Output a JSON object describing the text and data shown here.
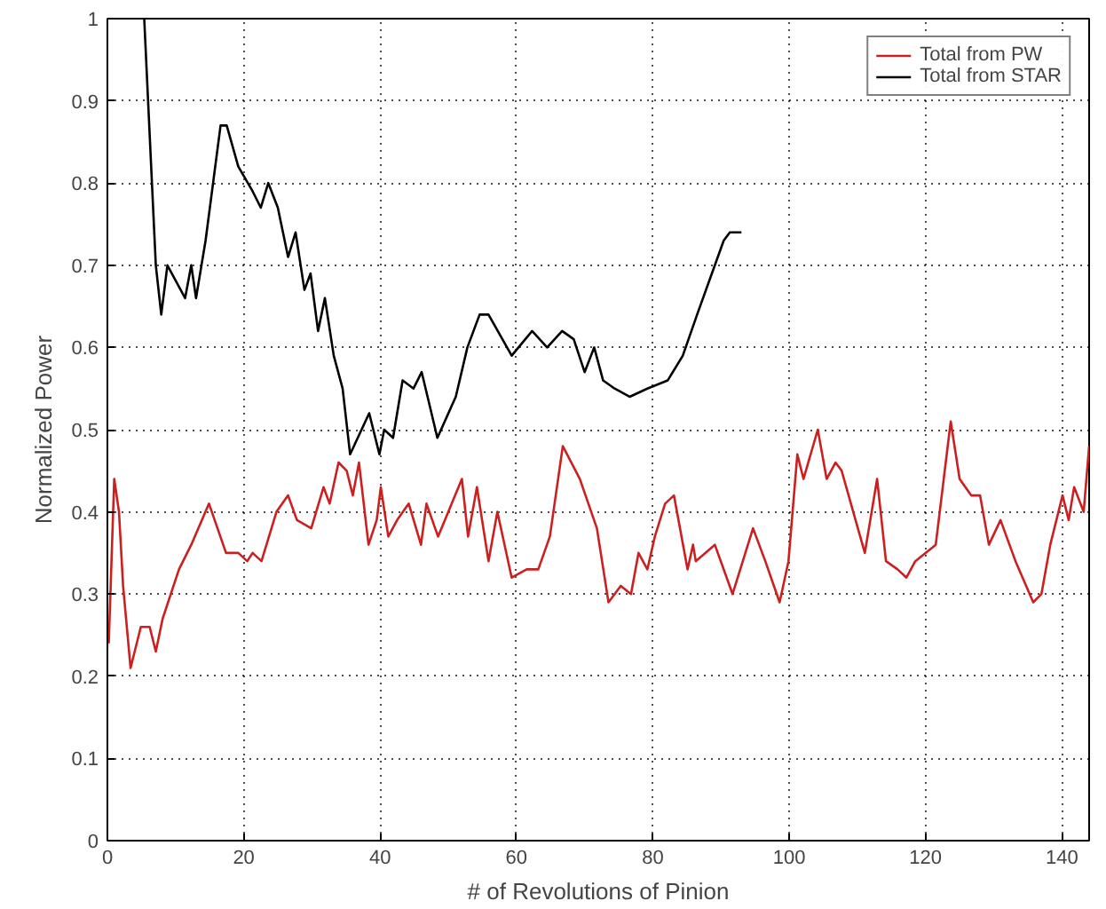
{
  "chart_data": {
    "type": "line",
    "xlabel": "# of Revolutions of Pinion",
    "ylabel": "Normalized Power",
    "xlim": [
      0,
      144
    ],
    "ylim": [
      0,
      1
    ],
    "xticks": [
      0,
      20,
      40,
      60,
      80,
      100,
      120,
      140
    ],
    "yticks": [
      0,
      0.1,
      0.2,
      0.3,
      0.4,
      0.5,
      0.6,
      0.7,
      0.8,
      0.9,
      1
    ],
    "grid": true,
    "legend": "top right",
    "line_style": "solid",
    "marker": "none",
    "series": [
      {
        "name": "Total from PW",
        "color": "#cc1f1f",
        "x": [
          0.2,
          1.0,
          1.7,
          2.3,
          3.4,
          4.9,
          6.2,
          7.1,
          8.1,
          10.5,
          12.3,
          14.9,
          17.4,
          19.2,
          20.5,
          21.3,
          22.6,
          24.8,
          26.5,
          27.8,
          29.9,
          31.7,
          32.6,
          33.9,
          35.1,
          36.0,
          36.9,
          38.3,
          39.5,
          40.1,
          41.2,
          42.5,
          44.2,
          46.0,
          46.8,
          48.5,
          52.0,
          52.9,
          54.2,
          55.9,
          57.2,
          59.3,
          61.5,
          63.2,
          64.9,
          66.8,
          69.3,
          71.8,
          73.5,
          75.3,
          76.8,
          77.9,
          79.2,
          80.3,
          81.8,
          83.1,
          85.1,
          85.9,
          86.3,
          89.1,
          91.7,
          94.7,
          96.5,
          98.6,
          99.9,
          101.2,
          102.1,
          104.2,
          105.5,
          106.8,
          107.7,
          109.4,
          111.1,
          112.9,
          114.2,
          115.9,
          117.2,
          118.5,
          121.5,
          123.7,
          125.0,
          126.7,
          128.0,
          129.3,
          131.0,
          133.2,
          135.8,
          137.0,
          138.3,
          140.1,
          141.0,
          141.8,
          143.2,
          144
        ],
        "values": [
          0.24,
          0.44,
          0.4,
          0.31,
          0.21,
          0.26,
          0.26,
          0.23,
          0.27,
          0.33,
          0.36,
          0.41,
          0.35,
          0.35,
          0.34,
          0.35,
          0.34,
          0.4,
          0.42,
          0.39,
          0.38,
          0.43,
          0.41,
          0.46,
          0.45,
          0.42,
          0.46,
          0.36,
          0.39,
          0.43,
          0.37,
          0.39,
          0.41,
          0.36,
          0.41,
          0.37,
          0.44,
          0.37,
          0.43,
          0.34,
          0.4,
          0.32,
          0.33,
          0.33,
          0.37,
          0.48,
          0.44,
          0.38,
          0.29,
          0.31,
          0.3,
          0.35,
          0.33,
          0.37,
          0.41,
          0.42,
          0.33,
          0.36,
          0.34,
          0.36,
          0.3,
          0.38,
          0.34,
          0.29,
          0.34,
          0.47,
          0.44,
          0.5,
          0.44,
          0.46,
          0.45,
          0.4,
          0.35,
          0.44,
          0.34,
          0.33,
          0.32,
          0.34,
          0.36,
          0.51,
          0.44,
          0.42,
          0.42,
          0.36,
          0.39,
          0.34,
          0.29,
          0.3,
          0.36,
          0.42,
          0.39,
          0.43,
          0.4,
          0.48
        ]
      },
      {
        "name": "Total from STAR",
        "color": "#000000",
        "x": [
          5.4,
          7.1,
          7.9,
          8.8,
          11.4,
          12.3,
          13.0,
          14.4,
          16.6,
          17.5,
          19.2,
          21.3,
          22.5,
          23.6,
          25.0,
          26.5,
          27.6,
          28.9,
          29.8,
          30.9,
          31.9,
          33.2,
          34.5,
          35.6,
          38.4,
          39.9,
          40.6,
          41.9,
          43.3,
          44.9,
          46.1,
          48.4,
          51.1,
          52.8,
          54.6,
          55.9,
          59.3,
          62.3,
          64.5,
          66.7,
          68.4,
          70.0,
          71.4,
          72.7,
          74.4,
          76.6,
          79.2,
          82.2,
          84.4,
          86.5,
          89.1,
          90.4,
          91.3,
          93.0
        ],
        "values": [
          1.0,
          0.7,
          0.64,
          0.7,
          0.66,
          0.7,
          0.66,
          0.73,
          0.87,
          0.87,
          0.82,
          0.79,
          0.77,
          0.8,
          0.77,
          0.71,
          0.74,
          0.67,
          0.69,
          0.62,
          0.66,
          0.59,
          0.55,
          0.47,
          0.52,
          0.47,
          0.5,
          0.49,
          0.56,
          0.55,
          0.57,
          0.49,
          0.54,
          0.6,
          0.64,
          0.64,
          0.59,
          0.62,
          0.6,
          0.62,
          0.61,
          0.57,
          0.6,
          0.56,
          0.55,
          0.54,
          0.55,
          0.56,
          0.59,
          0.64,
          0.7,
          0.73,
          0.74,
          0.74
        ]
      }
    ]
  }
}
